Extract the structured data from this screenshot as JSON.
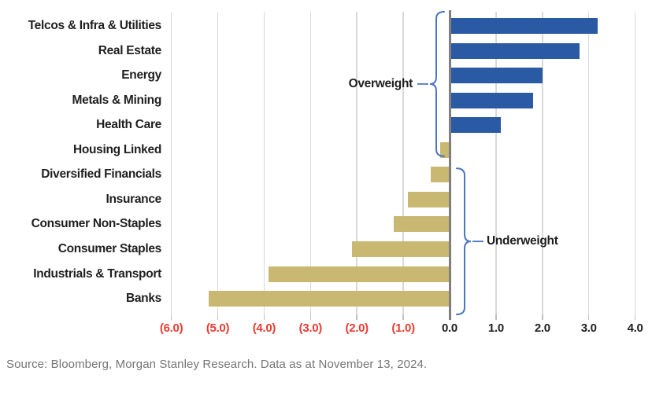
{
  "chart_data": {
    "type": "bar",
    "orientation": "horizontal",
    "categories": [
      "Telcos & Infra & Utilities",
      "Real Estate",
      "Energy",
      "Metals & Mining",
      "Health Care",
      "Housing Linked",
      "Diversified Financials",
      "Insurance",
      "Consumer Non-Staples",
      "Consumer Staples",
      "Industrials & Transport",
      "Banks"
    ],
    "values": [
      3.2,
      2.8,
      2.0,
      1.8,
      1.1,
      -0.2,
      -0.4,
      -0.9,
      -1.2,
      -2.1,
      -3.9,
      -5.2
    ],
    "x_ticks": [
      {
        "value": -6,
        "label": "(6.0)"
      },
      {
        "value": -5,
        "label": "(5.0)"
      },
      {
        "value": -4,
        "label": "(4.0)"
      },
      {
        "value": -3,
        "label": "(3.0)"
      },
      {
        "value": -2,
        "label": "(2.0)"
      },
      {
        "value": -1,
        "label": "(1.0)"
      },
      {
        "value": 0,
        "label": "0.0"
      },
      {
        "value": 1,
        "label": "1.0"
      },
      {
        "value": 2,
        "label": "2.0"
      },
      {
        "value": 3,
        "label": "3.0"
      },
      {
        "value": 4,
        "label": "4.0"
      }
    ],
    "xlim": [
      -6,
      4
    ],
    "grid": true,
    "annotations": [
      {
        "label": "Overweight",
        "row_start": 0,
        "row_end": 5,
        "side": "left"
      },
      {
        "label": "Underweight",
        "row_start": 6,
        "row_end": 11,
        "side": "right"
      }
    ],
    "colors": {
      "positive_bar": "#2B5AA4",
      "negative_bar": "#C9B872",
      "negative_tick_label": "#EB3B32",
      "positive_tick_label": "#1F1F1F",
      "gridline": "#D9D9D9",
      "tick_mark": "#BFBFBF",
      "zero_line": "#7F7F7F",
      "brace": "#4A77BE"
    }
  },
  "footer": {
    "source": "Source: Bloomberg, Morgan Stanley Research. Data as at November 13, 2024."
  }
}
